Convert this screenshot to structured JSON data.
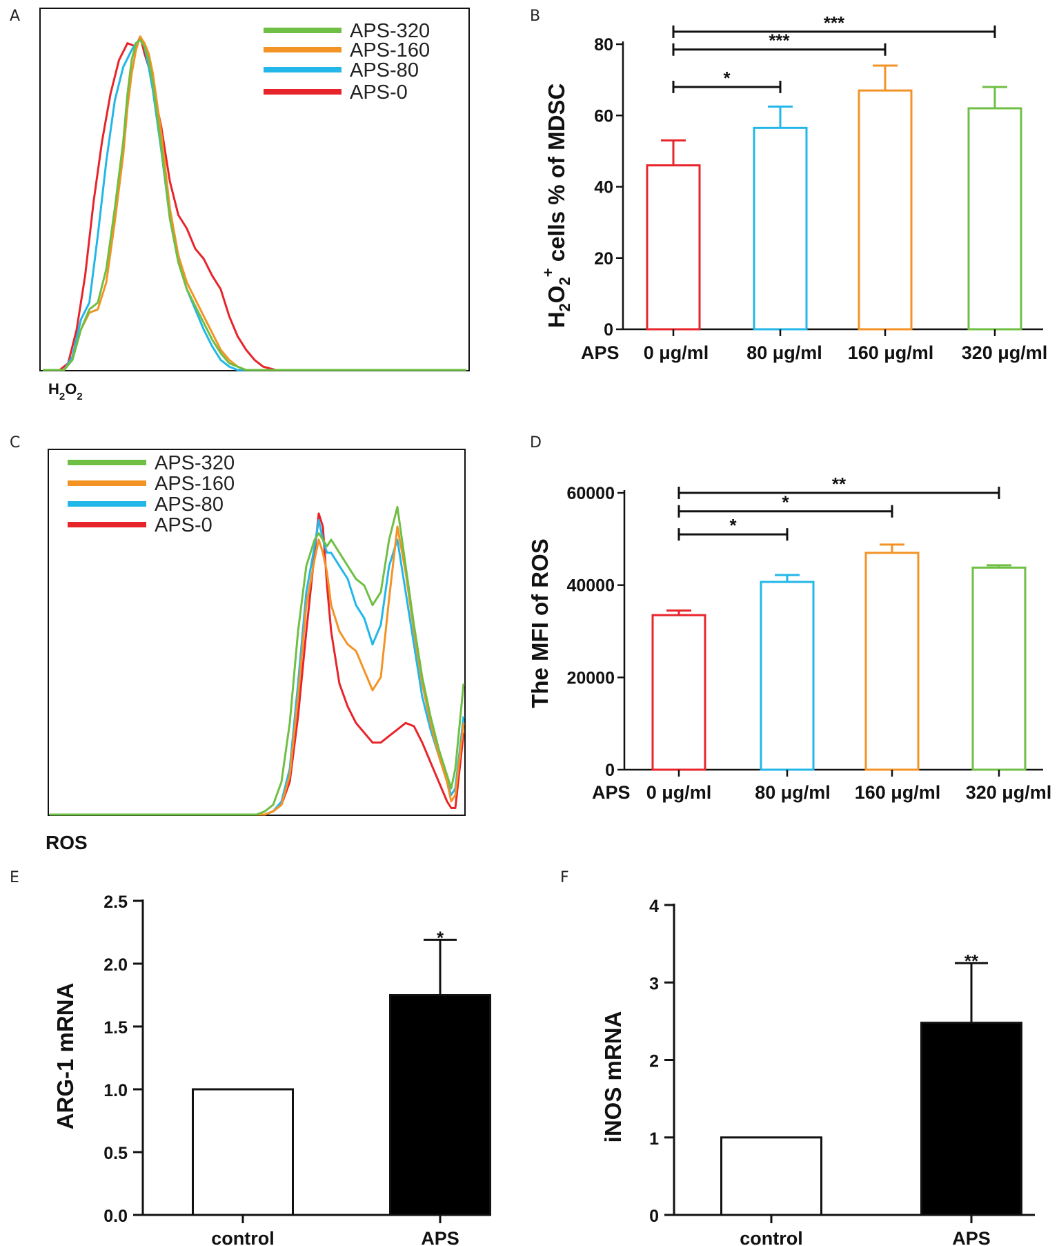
{
  "colors": {
    "aps0": "#e8242b",
    "aps80": "#22b7e8",
    "aps160": "#f39325",
    "aps320": "#6fbf44",
    "black": "#111111"
  },
  "chart_data": [
    {
      "id": "A",
      "panel_label": "A",
      "type": "line",
      "title": "",
      "xlabel": "H2O2",
      "xlabel_base": "H",
      "xlabel_sub1": "2",
      "xlabel_mid": "O",
      "xlabel_sub2": "2",
      "ylabel": "",
      "legend_position": "top-right",
      "legend": [
        "APS-320",
        "APS-160",
        "APS-80",
        "APS-0"
      ],
      "x_range": [
        0,
        100
      ],
      "y_range": [
        0,
        100
      ],
      "series": [
        {
          "name": "APS-0",
          "color_key": "aps0",
          "x": [
            0,
            4,
            6,
            8,
            10,
            12,
            14,
            16,
            18,
            20,
            22,
            23,
            24,
            25,
            26,
            28,
            30,
            32,
            34,
            36,
            38,
            40,
            42,
            44,
            46,
            48,
            50,
            52,
            55,
            58,
            100
          ],
          "y": [
            0,
            0,
            2,
            12,
            28,
            50,
            68,
            82,
            92,
            97,
            96,
            99,
            94,
            90,
            84,
            72,
            56,
            46,
            42,
            36,
            33,
            28,
            24,
            16,
            10,
            6,
            3,
            1,
            0,
            0,
            0
          ]
        },
        {
          "name": "APS-80",
          "color_key": "aps80",
          "x": [
            0,
            5,
            7,
            9,
            11,
            13,
            15,
            17,
            19,
            21,
            22,
            23,
            24,
            25,
            26,
            28,
            30,
            32,
            34,
            36,
            38,
            40,
            42,
            44,
            46,
            48,
            100
          ],
          "y": [
            0,
            0,
            4,
            15,
            20,
            40,
            62,
            80,
            90,
            95,
            97,
            98,
            96,
            90,
            83,
            65,
            45,
            32,
            24,
            18,
            12,
            7,
            3,
            1,
            0,
            0,
            0
          ]
        },
        {
          "name": "APS-160",
          "color_key": "aps160",
          "x": [
            0,
            5,
            7,
            9,
            11,
            13,
            15,
            17,
            19,
            20,
            21,
            22,
            23,
            24,
            25,
            26,
            28,
            30,
            32,
            34,
            36,
            38,
            40,
            42,
            44,
            46,
            48,
            50,
            100
          ],
          "y": [
            0,
            0,
            3,
            12,
            17,
            18,
            26,
            44,
            64,
            78,
            88,
            95,
            99,
            97,
            94,
            88,
            70,
            48,
            34,
            26,
            21,
            16,
            11,
            6,
            3,
            1,
            0,
            0,
            0
          ]
        },
        {
          "name": "APS-320",
          "color_key": "aps320",
          "x": [
            0,
            5,
            7,
            9,
            11,
            13,
            15,
            17,
            19,
            20,
            21,
            22,
            23,
            24,
            25,
            26,
            28,
            30,
            32,
            34,
            36,
            38,
            40,
            42,
            44,
            46,
            48,
            100
          ],
          "y": [
            0,
            0,
            3,
            12,
            18,
            20,
            30,
            48,
            68,
            82,
            92,
            97,
            98,
            96,
            92,
            85,
            66,
            45,
            32,
            24,
            19,
            14,
            9,
            5,
            2,
            1,
            0,
            0
          ]
        }
      ]
    },
    {
      "id": "B",
      "panel_label": "B",
      "type": "bar",
      "title": "",
      "ylabel": "H2O2+ cells % of MDSC",
      "ylabel_text_a": "H",
      "ylabel_sub1": "2",
      "ylabel_text_b": "O",
      "ylabel_sub2": "2",
      "ylabel_sup": "+",
      "ylabel_rest": " cells % of MDSC",
      "xlabel": "APS",
      "categories": [
        "0 μg/ml",
        "80 μg/ml",
        "160 μg/ml",
        "320 μg/ml"
      ],
      "values": [
        46,
        56.5,
        67,
        62
      ],
      "errors": [
        7,
        6,
        7,
        6
      ],
      "color_keys": [
        "aps0",
        "aps80",
        "aps160",
        "aps320"
      ],
      "fill": "none",
      "yticks": [
        0,
        20,
        40,
        60,
        80
      ],
      "tick_labels": [
        "0",
        "20",
        "40",
        "60",
        "80"
      ],
      "ylim": [
        0,
        80
      ],
      "significance": [
        {
          "from": 0,
          "to": 1,
          "label": "*",
          "y": 68
        },
        {
          "from": 0,
          "to": 2,
          "label": "***",
          "y": 78.5
        },
        {
          "from": 0,
          "to": 3,
          "label": "***",
          "y": 83.5
        }
      ]
    },
    {
      "id": "C",
      "panel_label": "C",
      "type": "line",
      "title": "",
      "xlabel": "ROS",
      "ylabel": "",
      "legend_position": "top-left",
      "legend": [
        "APS-320",
        "APS-160",
        "APS-80",
        "APS-0"
      ],
      "x_range": [
        0,
        100
      ],
      "y_range": [
        0,
        100
      ],
      "series": [
        {
          "name": "APS-0",
          "color_key": "aps0",
          "x": [
            0,
            50,
            52,
            54,
            56,
            58,
            60,
            62,
            64,
            65,
            66,
            67,
            68,
            70,
            72,
            74,
            76,
            78,
            80,
            82,
            84,
            86,
            88,
            90,
            92,
            94,
            96,
            97,
            98,
            100
          ],
          "y": [
            0,
            0,
            0,
            1,
            3,
            10,
            30,
            56,
            80,
            92,
            88,
            70,
            56,
            40,
            33,
            28,
            25,
            22,
            22,
            24,
            26,
            28,
            27,
            22,
            16,
            10,
            4,
            2,
            2,
            25
          ]
        },
        {
          "name": "APS-80",
          "color_key": "aps80",
          "x": [
            0,
            50,
            52,
            54,
            56,
            58,
            60,
            62,
            64,
            65,
            66,
            67,
            68,
            70,
            72,
            74,
            76,
            78,
            80,
            82,
            84,
            86,
            88,
            90,
            92,
            94,
            96,
            97,
            98,
            100
          ],
          "y": [
            0,
            0,
            0,
            1,
            4,
            14,
            40,
            68,
            82,
            90,
            84,
            80,
            80,
            76,
            72,
            64,
            60,
            52,
            58,
            76,
            84,
            68,
            52,
            36,
            26,
            18,
            10,
            6,
            8,
            30
          ]
        },
        {
          "name": "APS-160",
          "color_key": "aps160",
          "x": [
            0,
            50,
            52,
            54,
            56,
            58,
            60,
            62,
            64,
            65,
            66,
            67,
            68,
            70,
            72,
            74,
            76,
            78,
            80,
            82,
            84,
            86,
            88,
            90,
            92,
            94,
            96,
            97,
            98,
            100
          ],
          "y": [
            0,
            0,
            0,
            1,
            3,
            12,
            36,
            64,
            78,
            84,
            80,
            74,
            64,
            56,
            52,
            50,
            44,
            38,
            42,
            66,
            88,
            74,
            56,
            40,
            28,
            18,
            10,
            4,
            6,
            28
          ]
        },
        {
          "name": "APS-320",
          "color_key": "aps320",
          "x": [
            0,
            50,
            52,
            54,
            56,
            58,
            60,
            62,
            64,
            65,
            66,
            67,
            68,
            70,
            72,
            74,
            76,
            78,
            80,
            82,
            84,
            86,
            88,
            90,
            92,
            94,
            96,
            97,
            98,
            100
          ],
          "y": [
            0,
            0,
            1,
            3,
            10,
            28,
            56,
            76,
            84,
            86,
            84,
            82,
            84,
            80,
            76,
            72,
            70,
            64,
            68,
            84,
            94,
            76,
            58,
            42,
            30,
            20,
            12,
            8,
            14,
            40
          ]
        }
      ]
    },
    {
      "id": "D",
      "panel_label": "D",
      "type": "bar",
      "title": "",
      "ylabel": "The MFI of ROS",
      "xlabel": "APS",
      "categories": [
        "0 μg/ml",
        "80 μg/ml",
        "160 μg/ml",
        "320 μg/ml"
      ],
      "values": [
        33500,
        40700,
        47000,
        43800
      ],
      "errors": [
        1000,
        1500,
        1800,
        500
      ],
      "color_keys": [
        "aps0",
        "aps80",
        "aps160",
        "aps320"
      ],
      "fill": "none",
      "yticks": [
        0,
        20000,
        40000,
        60000
      ],
      "tick_labels": [
        "0",
        "20000",
        "40000",
        "60000"
      ],
      "ylim": [
        0,
        60000
      ],
      "significance": [
        {
          "from": 0,
          "to": 1,
          "label": "*",
          "y": 51000
        },
        {
          "from": 0,
          "to": 2,
          "label": "*",
          "y": 56000
        },
        {
          "from": 0,
          "to": 3,
          "label": "**",
          "y": 60000
        }
      ]
    },
    {
      "id": "E",
      "panel_label": "E",
      "type": "bar",
      "title": "",
      "ylabel": "ARG-1 mRNA",
      "xlabel": "",
      "categories": [
        "control",
        "APS"
      ],
      "values": [
        1.0,
        1.75
      ],
      "errors": [
        0,
        0.44
      ],
      "fills": [
        "white",
        "black"
      ],
      "yticks": [
        0,
        0.5,
        1.0,
        1.5,
        2.0,
        2.5
      ],
      "tick_labels": [
        "0.0",
        "0.5",
        "1.0",
        "1.5",
        "2.0",
        "2.5"
      ],
      "ylim": [
        0,
        2.5
      ],
      "significance": [
        {
          "bar": 1,
          "label": "*"
        }
      ]
    },
    {
      "id": "F",
      "panel_label": "F",
      "type": "bar",
      "title": "",
      "ylabel": "iNOS mRNA",
      "xlabel": "",
      "categories": [
        "control",
        "APS"
      ],
      "values": [
        1.0,
        2.48
      ],
      "errors": [
        0,
        0.77
      ],
      "fills": [
        "white",
        "black"
      ],
      "yticks": [
        0,
        1,
        2,
        3,
        4
      ],
      "tick_labels": [
        "0",
        "1",
        "2",
        "3",
        "4"
      ],
      "ylim": [
        0,
        4
      ],
      "significance": [
        {
          "bar": 1,
          "label": "**"
        }
      ]
    }
  ]
}
